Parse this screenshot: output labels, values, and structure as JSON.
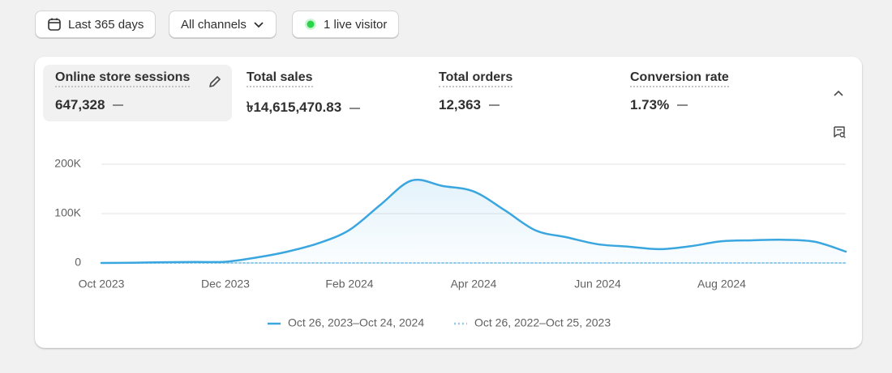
{
  "toolbar": {
    "date_range": "Last 365 days",
    "channels": "All channels",
    "live": "1 live visitor"
  },
  "metrics": [
    {
      "label": "Online store sessions",
      "value": "647,328"
    },
    {
      "label": "Total sales",
      "value": "৳14,615,470.83"
    },
    {
      "label": "Total orders",
      "value": "12,363"
    },
    {
      "label": "Conversion rate",
      "value": "1.73%"
    }
  ],
  "chart_data": {
    "type": "line",
    "categories": [
      "Oct 2023",
      null,
      null,
      null,
      "Dec 2023",
      null,
      null,
      null,
      "Feb 2024",
      null,
      null,
      null,
      "Apr 2024",
      null,
      null,
      null,
      "Jun 2024",
      null,
      null,
      null,
      "Aug 2024",
      null,
      null,
      null,
      null
    ],
    "series": [
      {
        "name": "Oct 26, 2023–Oct 24, 2024",
        "color": "#3aa6df",
        "values": [
          0,
          500,
          1500,
          2000,
          2500,
          11000,
          23000,
          40000,
          67000,
          118000,
          167000,
          156000,
          145000,
          107000,
          66000,
          52000,
          38000,
          33000,
          28000,
          34000,
          44000,
          46000,
          47000,
          43000,
          23000
        ]
      },
      {
        "name": "Oct 26, 2022–Oct 25, 2023",
        "color": "#8fcbea",
        "style": "dotted",
        "values": [
          0,
          0,
          0,
          0,
          0,
          0,
          0,
          0,
          0,
          0,
          0,
          0,
          0,
          0,
          0,
          0,
          0,
          0,
          0,
          0,
          0,
          0,
          0,
          0,
          0
        ]
      }
    ],
    "ylim": [
      0,
      200000
    ],
    "yticks": [
      0,
      {
        "value": 100000,
        "label": "100K"
      },
      {
        "value": 200000,
        "label": "200K"
      }
    ],
    "grid": true
  }
}
